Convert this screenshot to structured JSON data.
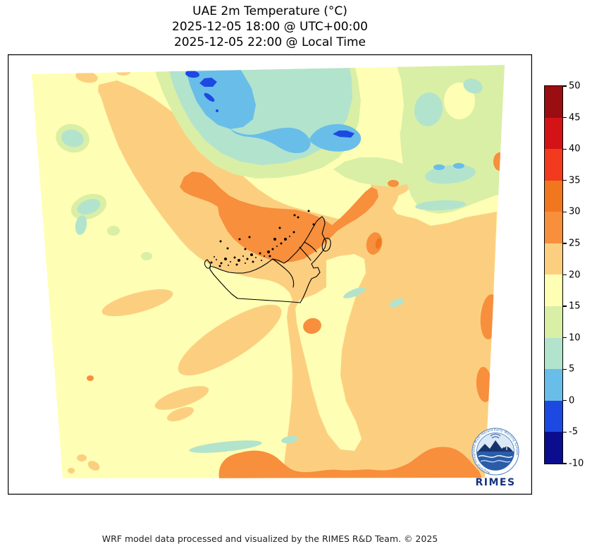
{
  "title": {
    "line1": "UAE 2m Temperature (°C)",
    "line2": "2025-12-05 18:00 @ UTC+00:00",
    "line3": "2025-12-05 22:00 @ Local Time"
  },
  "footer": {
    "credit": "WRF model data processed and visualized by the RIMES R&D Team. © 2025"
  },
  "logo": {
    "acronym": "RIMES",
    "ring_text": "Regional Integrated Multi-Hazard Early Warning System"
  },
  "chart_data": {
    "type": "heatmap",
    "subtype": "filled-contour-weather-map",
    "variable": "2m Temperature",
    "units": "°C",
    "title": "UAE 2m Temperature (°C)",
    "time_utc": "2025-12-05 18:00 @ UTC+00:00",
    "time_local": "2025-12-05 22:00 @ Local Time",
    "colorbar": {
      "orientation": "vertical",
      "min": -10,
      "max": 50,
      "interval": 5,
      "ticks": [
        50,
        45,
        40,
        35,
        30,
        25,
        20,
        15,
        10,
        5,
        0,
        -5,
        -10
      ],
      "levels": [
        {
          "key": "45-50",
          "range_c": "45 to 50",
          "color": "#9a0d11"
        },
        {
          "key": "40-45",
          "range_c": "40 to 45",
          "color": "#d41317"
        },
        {
          "key": "35-40",
          "range_c": "35 to 40",
          "color": "#f13a1e"
        },
        {
          "key": "30-35",
          "range_c": "30 to 35",
          "color": "#f1771f"
        },
        {
          "key": "25-30",
          "range_c": "25 to 30",
          "color": "#f78f3c"
        },
        {
          "key": "20-25",
          "range_c": "20 to 25",
          "color": "#fccf80"
        },
        {
          "key": "15-20",
          "range_c": "15 to 20",
          "color": "#feffb4"
        },
        {
          "key": "10-15",
          "range_c": "10 to 15",
          "color": "#d9efa6"
        },
        {
          "key": "5-10",
          "range_c": "5 to 10",
          "color": "#b2e3cd"
        },
        {
          "key": "0-5",
          "range_c": "0 to 5",
          "color": "#69bde9"
        },
        {
          "key": "-5-0",
          "range_c": "-5 to 0",
          "color": "#1c49e2"
        },
        {
          "key": "-10--5",
          "range_c": "-10 to -5",
          "color": "#0b0d8f"
        }
      ]
    },
    "field_summary": [
      {
        "area": "top-centre mountain zone",
        "band_c": "-5 to 5"
      },
      {
        "area": "top and upper-right fringe",
        "band_c": "5 to 15"
      },
      {
        "area": "gulf waters along the UAE coastline (centre)",
        "band_c": "25 to 30"
      },
      {
        "area": "coastal strip and central band",
        "band_c": "20 to 25"
      },
      {
        "area": "western and southern desert background",
        "band_c": "15 to 20"
      },
      {
        "area": "southeast corner and bottom edge",
        "band_c": "20 to 30"
      }
    ],
    "map_overlay": "UAE national border and coastal point markers drawn in black"
  }
}
